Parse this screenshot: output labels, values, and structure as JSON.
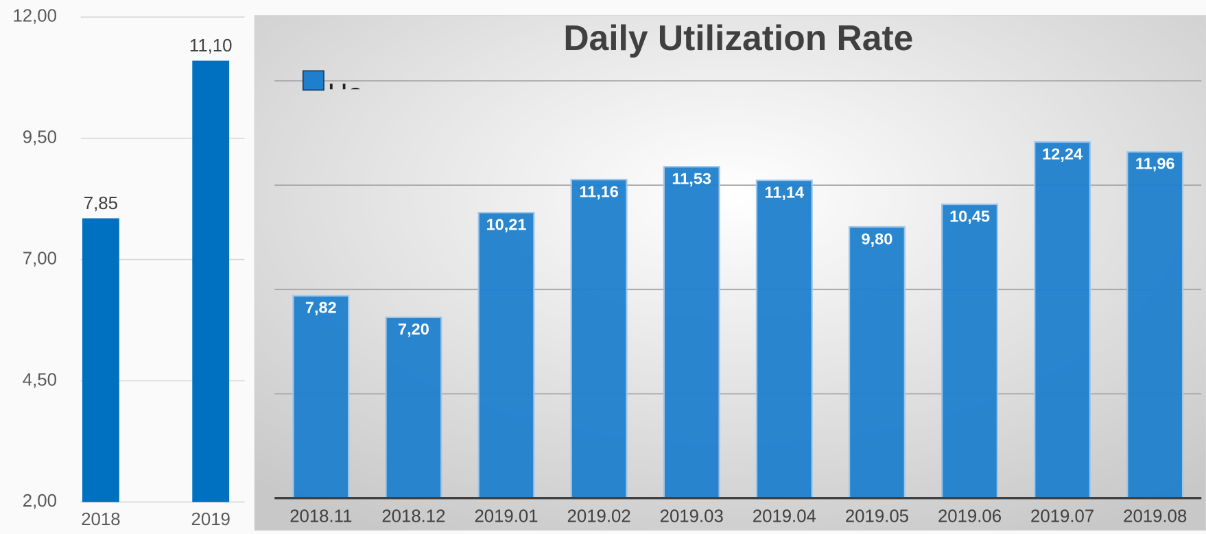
{
  "chart_data": [
    {
      "type": "bar",
      "categories": [
        "2018",
        "2019"
      ],
      "values": [
        7.85,
        11.1
      ],
      "value_labels": [
        "7,85",
        "11,10"
      ],
      "color": "#0070c0",
      "ylim": [
        2,
        12
      ],
      "yticks": [
        {
          "value": 2,
          "label": "2,00"
        },
        {
          "value": 4.5,
          "label": "4,50"
        },
        {
          "value": 7,
          "label": "7,00"
        },
        {
          "value": 9.5,
          "label": "9,50"
        },
        {
          "value": 12,
          "label": "12,00"
        }
      ],
      "grid": true
    },
    {
      "type": "bar",
      "title": "Daily Utilization Rate",
      "categories": [
        "2018.11",
        "2018.12",
        "2019.01",
        "2019.02",
        "2019.03",
        "2019.04",
        "2019.05",
        "2019.06",
        "2019.07",
        "2019.08"
      ],
      "series": [
        {
          "name": "Ho",
          "color": "#1f7fcc",
          "values": [
            7.82,
            7.2,
            10.21,
            11.16,
            11.53,
            11.14,
            9.8,
            10.45,
            12.24,
            11.96
          ],
          "value_labels": [
            "7,82",
            "7,20",
            "10,21",
            "11,16",
            "11,53",
            "11,14",
            "9,80",
            "10,45",
            "12,24",
            "11,96"
          ]
        }
      ],
      "ylim": [
        2,
        14
      ],
      "yticks": [
        2,
        5,
        8,
        11,
        14
      ],
      "grid": true,
      "legend": "top-left"
    }
  ]
}
